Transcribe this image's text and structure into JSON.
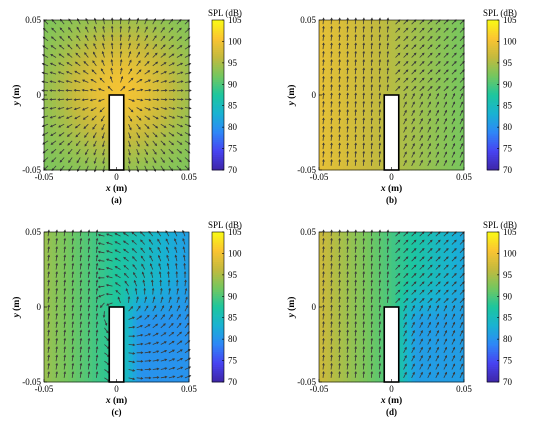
{
  "figure": {
    "colorbar_title": "SPL (dB)",
    "colorbar_ticks": [
      "70",
      "75",
      "80",
      "85",
      "90",
      "95",
      "100",
      "105"
    ],
    "axis_x_label_var": "x",
    "axis_x_label_unit": " (m)",
    "axis_y_label_var": "y",
    "axis_y_label_unit": " (m)",
    "x_ticks": [
      "-0.05",
      "0",
      "0.05"
    ],
    "y_ticks": [
      "0.05",
      "0",
      "-0.05"
    ],
    "colormap": [
      "#3e26a8",
      "#4743f1",
      "#2e87f7",
      "#19b2d3",
      "#1dc69e",
      "#74c75f",
      "#c3ba3e",
      "#fbc432",
      "#f9fb15"
    ],
    "arrow_color": "#3a3a3a",
    "obstacle_fill": "#ffffff"
  },
  "chart_data": [
    {
      "type": "heatmap",
      "panel": "(a)",
      "caption": "(a)",
      "xlabel": "x (m)",
      "ylabel": "y (m)",
      "xlim": [
        -0.05,
        0.05
      ],
      "ylim": [
        -0.05,
        0.05
      ],
      "colorbar_label": "SPL (dB)",
      "clim": [
        70,
        105
      ],
      "field": {
        "base": 92,
        "hotspot": {
          "x": 0.003,
          "y": 0.003,
          "peak": 100,
          "radius": 0.03
        },
        "shadow": null,
        "gradient": null
      },
      "obstacle": {
        "x": [
          -0.005,
          0.005
        ],
        "y": [
          -0.05,
          0.0
        ]
      },
      "flow": "radial_from_tip"
    },
    {
      "type": "heatmap",
      "panel": "(b)",
      "caption": "(b)",
      "xlabel": "x (m)",
      "ylabel": "y (m)",
      "xlim": [
        -0.05,
        0.05
      ],
      "ylim": [
        -0.05,
        0.05
      ],
      "colorbar_label": "SPL (dB)",
      "clim": [
        70,
        105
      ],
      "field": {
        "base": 95,
        "hotspot": null,
        "shadow": null,
        "gradient": {
          "left": 99,
          "right": 92
        }
      },
      "obstacle": {
        "x": [
          -0.005,
          0.005
        ],
        "y": [
          -0.05,
          0.0
        ]
      },
      "flow": "up_left_side"
    },
    {
      "type": "heatmap",
      "panel": "(c)",
      "caption": "(c)",
      "xlabel": "x (m)",
      "ylabel": "y (m)",
      "xlim": [
        -0.05,
        0.05
      ],
      "ylim": [
        -0.05,
        0.05
      ],
      "colorbar_label": "SPL (dB)",
      "clim": [
        70,
        105
      ],
      "field": {
        "base": 88,
        "hotspot": null,
        "shadow": {
          "x": 0.03,
          "y": -0.02,
          "level": 80
        },
        "gradient": {
          "left": 94,
          "right": 81
        }
      },
      "obstacle": {
        "x": [
          -0.005,
          0.005
        ],
        "y": [
          -0.05,
          0.0
        ]
      },
      "flow": "vortex_at_tip"
    },
    {
      "type": "heatmap",
      "panel": "(d)",
      "caption": "(d)",
      "xlabel": "x (m)",
      "ylabel": "y (m)",
      "xlim": [
        -0.05,
        0.05
      ],
      "ylim": [
        -0.05,
        0.05
      ],
      "colorbar_label": "SPL (dB)",
      "clim": [
        70,
        105
      ],
      "field": {
        "base": 88,
        "hotspot": null,
        "shadow": {
          "x": 0.03,
          "y": -0.02,
          "level": 81
        },
        "gradient": {
          "left": 97,
          "right": 82
        }
      },
      "obstacle": {
        "x": [
          -0.005,
          0.005
        ],
        "y": [
          -0.05,
          0.0
        ]
      },
      "flow": "up_left_side"
    }
  ]
}
